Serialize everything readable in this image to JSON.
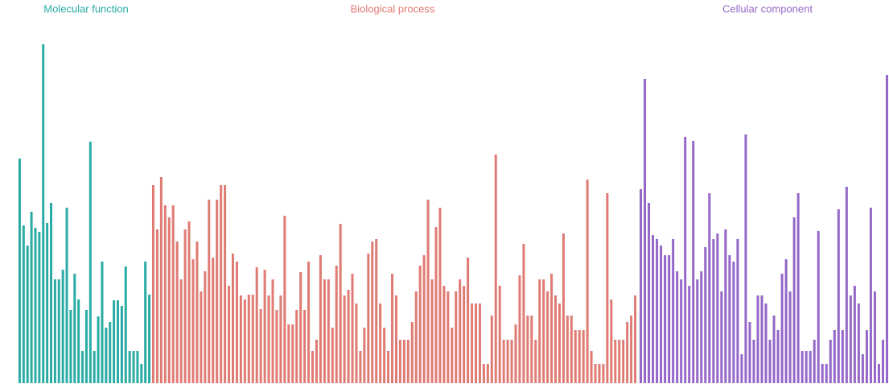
{
  "chart_data": [
    {
      "type": "bar",
      "title": "Molecular function",
      "color": "#2aaba4",
      "ylim": [
        0,
        430
      ],
      "values": [
        279,
        196,
        171,
        213,
        193,
        188,
        421,
        199,
        224,
        129,
        129,
        141,
        218,
        91,
        136,
        104,
        40,
        91,
        300,
        40,
        83,
        151,
        69,
        76,
        103,
        103,
        96,
        145,
        40,
        40,
        40,
        24,
        151,
        110
      ]
    },
    {
      "type": "bar",
      "title": "Biological process",
      "color": "#e07b74",
      "ylim": [
        0,
        430
      ],
      "values": [
        246,
        191,
        256,
        221,
        206,
        221,
        176,
        129,
        191,
        201,
        154,
        176,
        114,
        139,
        228,
        156,
        228,
        246,
        246,
        121,
        161,
        151,
        109,
        104,
        110,
        110,
        144,
        92,
        141,
        109,
        129,
        91,
        109,
        208,
        73,
        73,
        91,
        138,
        91,
        151,
        40,
        54,
        159,
        129,
        129,
        69,
        146,
        198,
        109,
        116,
        136,
        99,
        40,
        69,
        161,
        176,
        179,
        99,
        69,
        40,
        136,
        109,
        54,
        54,
        54,
        76,
        114,
        146,
        159,
        228,
        129,
        194,
        218,
        121,
        114,
        69,
        114,
        129,
        121,
        156,
        99,
        99,
        99,
        24,
        24,
        84,
        284,
        121,
        54,
        54,
        54,
        73,
        134,
        173,
        84,
        84,
        54,
        129,
        129,
        114,
        136,
        109,
        99,
        186,
        84,
        84,
        66,
        66,
        66,
        253,
        40,
        24,
        24,
        24,
        236,
        104,
        54,
        54,
        54,
        76,
        84,
        109
      ]
    },
    {
      "type": "bar",
      "title": "Cellular component",
      "color": "#9467c8",
      "ylim": [
        0,
        430
      ],
      "values": [
        241,
        378,
        224,
        184,
        179,
        171,
        159,
        159,
        179,
        139,
        129,
        306,
        121,
        301,
        129,
        139,
        169,
        236,
        179,
        186,
        114,
        191,
        159,
        151,
        179,
        36,
        309,
        76,
        54,
        109,
        109,
        99,
        54,
        84,
        66,
        136,
        154,
        114,
        206,
        236,
        40,
        40,
        40,
        54,
        189,
        24,
        24,
        54,
        66,
        216,
        66,
        244,
        109,
        121,
        99,
        36,
        66,
        218,
        114,
        24,
        54,
        383
      ]
    }
  ]
}
